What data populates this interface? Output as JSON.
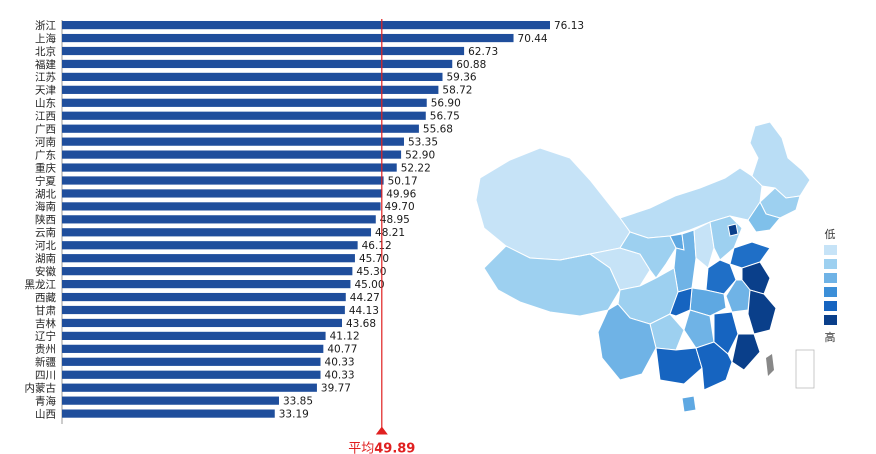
{
  "chart_data": {
    "type": "bar",
    "orientation": "horizontal",
    "categories": [
      "浙江",
      "上海",
      "北京",
      "福建",
      "江苏",
      "天津",
      "山东",
      "江西",
      "广西",
      "河南",
      "广东",
      "重庆",
      "宁夏",
      "湖北",
      "海南",
      "陕西",
      "云南",
      "河北",
      "湖南",
      "安徽",
      "黑龙江",
      "西藏",
      "甘肃",
      "吉林",
      "辽宁",
      "贵州",
      "新疆",
      "四川",
      "内蒙古",
      "青海",
      "山西"
    ],
    "values": [
      76.13,
      70.44,
      62.73,
      60.88,
      59.36,
      58.72,
      56.9,
      56.75,
      55.68,
      53.35,
      52.9,
      52.22,
      50.17,
      49.96,
      49.7,
      48.95,
      48.21,
      46.12,
      45.7,
      45.3,
      45.0,
      44.27,
      44.13,
      43.68,
      41.12,
      40.77,
      40.33,
      40.33,
      39.77,
      33.85,
      33.19
    ],
    "value_labels": [
      "76.13",
      "70.44",
      "62.73",
      "60.88",
      "59.36",
      "58.72",
      "56.90",
      "56.75",
      "55.68",
      "53.35",
      "52.90",
      "52.22",
      "50.17",
      "49.96",
      "49.70",
      "48.95",
      "48.21",
      "46.12",
      "45.70",
      "45.30",
      "45.00",
      "44.27",
      "44.13",
      "43.68",
      "41.12",
      "40.77",
      "40.33",
      "40.33",
      "39.77",
      "33.85",
      "33.19"
    ],
    "bar_color": "#1f4e9c",
    "average": {
      "label": "平均",
      "value": 49.89,
      "value_text": "49.89",
      "color": "#e02020"
    },
    "xlim": [
      0,
      76.13
    ]
  },
  "map": {
    "legend_low": "低",
    "legend_high": "高",
    "legend_colors": [
      "#c6e3f7",
      "#9dd0f0",
      "#6fb3e6",
      "#3c8fd8",
      "#1664c0",
      "#0a3f8a"
    ]
  }
}
